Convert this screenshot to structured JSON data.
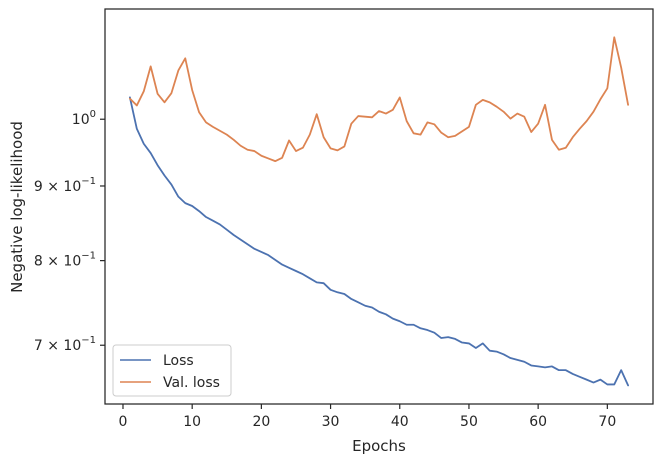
{
  "chart_data": {
    "type": "line",
    "xlabel": "Epochs",
    "ylabel": "Negative log-likelihood",
    "xlim": [
      -2.6,
      76.6
    ],
    "ylim": [
      0.638,
      1.19
    ],
    "y_scale": "log",
    "x_ticks": [
      0,
      10,
      20,
      30,
      40,
      50,
      60,
      70
    ],
    "x_tick_labels": [
      "0",
      "10",
      "20",
      "30",
      "40",
      "50",
      "60",
      "70"
    ],
    "y_ticks": [
      {
        "value": 1.0,
        "base": "10",
        "exp": "0"
      },
      {
        "value": 0.9,
        "base": "9 × 10",
        "exp": "−1"
      },
      {
        "value": 0.8,
        "base": "8 × 10",
        "exp": "−1"
      },
      {
        "value": 0.7,
        "base": "7 × 10",
        "exp": "−1"
      }
    ],
    "grid": false,
    "legend_position": "lower-left",
    "series": [
      {
        "name": "Loss",
        "color": "#4c72b0",
        "x": [
          1,
          2,
          3,
          4,
          5,
          6,
          7,
          8,
          9,
          10,
          11,
          12,
          13,
          14,
          15,
          16,
          17,
          18,
          19,
          20,
          21,
          22,
          23,
          24,
          25,
          26,
          27,
          28,
          29,
          30,
          31,
          32,
          33,
          34,
          35,
          36,
          37,
          38,
          39,
          40,
          41,
          42,
          43,
          44,
          45,
          46,
          47,
          48,
          49,
          50,
          51,
          52,
          53,
          54,
          55,
          56,
          57,
          58,
          59,
          60,
          61,
          62,
          63,
          64,
          65,
          66,
          67,
          68,
          69,
          70,
          71,
          72,
          73
        ],
        "y": [
          1.035,
          0.985,
          0.962,
          0.948,
          0.93,
          0.915,
          0.902,
          0.885,
          0.876,
          0.872,
          0.865,
          0.857,
          0.852,
          0.847,
          0.84,
          0.833,
          0.827,
          0.821,
          0.815,
          0.811,
          0.807,
          0.801,
          0.795,
          0.791,
          0.787,
          0.783,
          0.778,
          0.773,
          0.772,
          0.764,
          0.761,
          0.759,
          0.753,
          0.749,
          0.745,
          0.743,
          0.738,
          0.735,
          0.73,
          0.727,
          0.723,
          0.723,
          0.719,
          0.717,
          0.714,
          0.708,
          0.709,
          0.707,
          0.703,
          0.702,
          0.697,
          0.702,
          0.694,
          0.693,
          0.69,
          0.686,
          0.684,
          0.682,
          0.678,
          0.677,
          0.676,
          0.677,
          0.673,
          0.673,
          0.669,
          0.666,
          0.663,
          0.66,
          0.663,
          0.658,
          0.658,
          0.673,
          0.657
        ]
      },
      {
        "name": "Val. loss",
        "color": "#dd8452",
        "x": [
          1,
          2,
          3,
          4,
          5,
          6,
          7,
          8,
          9,
          10,
          11,
          12,
          13,
          14,
          15,
          16,
          17,
          18,
          19,
          20,
          21,
          22,
          23,
          24,
          25,
          26,
          27,
          28,
          29,
          30,
          31,
          32,
          33,
          34,
          35,
          36,
          37,
          38,
          39,
          40,
          41,
          42,
          43,
          44,
          45,
          46,
          47,
          48,
          49,
          50,
          51,
          52,
          53,
          54,
          55,
          56,
          57,
          58,
          59,
          60,
          61,
          62,
          63,
          64,
          65,
          66,
          67,
          68,
          69,
          70,
          71,
          72,
          73
        ],
        "y": [
          1.033,
          1.022,
          1.045,
          1.087,
          1.041,
          1.027,
          1.042,
          1.08,
          1.101,
          1.047,
          1.011,
          0.995,
          0.988,
          0.982,
          0.976,
          0.968,
          0.959,
          0.953,
          0.951,
          0.944,
          0.94,
          0.936,
          0.941,
          0.967,
          0.951,
          0.956,
          0.976,
          1.008,
          0.972,
          0.955,
          0.952,
          0.958,
          0.993,
          1.005,
          1.004,
          1.003,
          1.013,
          1.009,
          1.015,
          1.035,
          0.997,
          0.978,
          0.976,
          0.995,
          0.992,
          0.979,
          0.972,
          0.974,
          0.981,
          0.988,
          1.023,
          1.031,
          1.027,
          1.02,
          1.012,
          1.001,
          1.009,
          1.004,
          0.98,
          0.993,
          1.023,
          0.968,
          0.953,
          0.956,
          0.972,
          0.985,
          0.997,
          1.012,
          1.032,
          1.05,
          1.138,
          1.085,
          1.023
        ]
      }
    ]
  }
}
